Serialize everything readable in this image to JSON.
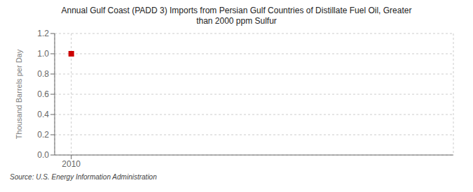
{
  "chart_data": {
    "type": "scatter",
    "title": "Annual Gulf Coast (PADD 3) Imports from Persian Gulf Countries of Distillate Fuel Oil, Greater\nthan 2000 ppm Sulfur",
    "y_label": "Thousand Barrels per Day",
    "annotations": [
      "Source: U.S. Energy Information Administration"
    ],
    "x": [
      2010
    ],
    "values": [
      1.0
    ],
    "color": "#cc0000",
    "marker": "square",
    "xlim": [
      2009.5,
      2021.5
    ],
    "xticks": [
      2010
    ],
    "ylim": [
      0.0,
      1.2
    ],
    "yticks": [
      {
        "value": 0,
        "label": "0.0"
      },
      0.2,
      0.4,
      0.6,
      0.8,
      {
        "value": 1,
        "label": "1.0"
      },
      1.2
    ],
    "grid": true
  }
}
